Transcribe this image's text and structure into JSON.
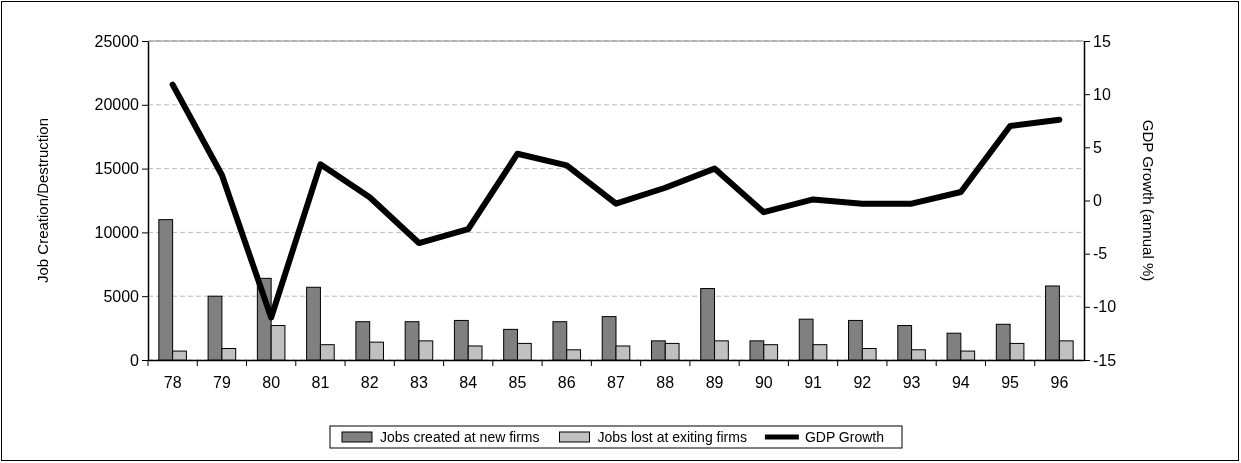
{
  "chart_data": {
    "type": "bar",
    "ylabel": "Job Creation/Destruction",
    "y2label": "GDP Growth (annual %)",
    "categories": [
      "78",
      "79",
      "80",
      "81",
      "82",
      "83",
      "84",
      "85",
      "86",
      "87",
      "88",
      "89",
      "90",
      "91",
      "92",
      "93",
      "94",
      "95",
      "96"
    ],
    "series": [
      {
        "name": "Jobs created at new firms",
        "color": "#808080",
        "values": [
          11000,
          5000,
          6400,
          5700,
          3000,
          3000,
          3100,
          2400,
          3000,
          3400,
          1500,
          5600,
          1500,
          3200,
          3100,
          2700,
          2100,
          2800,
          5800
        ]
      },
      {
        "name": "Jobs lost at exiting firms",
        "color": "#c0c0c0",
        "values": [
          700,
          900,
          2700,
          1200,
          1400,
          1500,
          1100,
          1300,
          800,
          1100,
          1300,
          1500,
          1200,
          1200,
          900,
          800,
          700,
          1300,
          1500
        ]
      },
      {
        "name": "GDP Growth",
        "type": "line",
        "axis": "y2",
        "color": "#000000",
        "values": [
          10.9,
          2.4,
          -11,
          3.4,
          0.3,
          -4,
          -2.7,
          4.4,
          3.3,
          -0.3,
          1.2,
          3,
          -1.1,
          0.1,
          -0.3,
          -0.3,
          0.8,
          7,
          7.6
        ]
      }
    ],
    "ylim": [
      0,
      25000
    ],
    "yticks": [
      0,
      5000,
      10000,
      15000,
      20000,
      25000
    ],
    "y2lim": [
      -15,
      15
    ],
    "y2ticks": [
      -15,
      -10,
      -5,
      0,
      5,
      10,
      15
    ],
    "grid": "y",
    "legend": "bottom",
    "marker": "none",
    "line_style": "solid"
  }
}
